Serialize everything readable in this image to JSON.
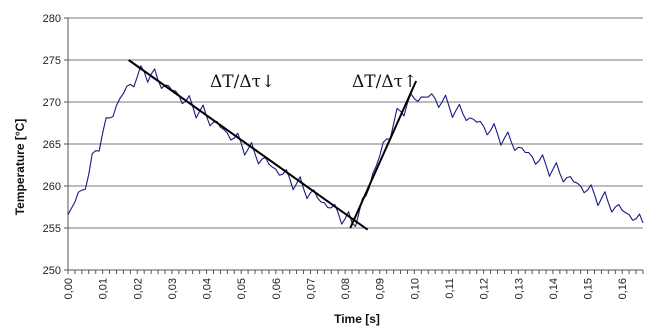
{
  "chart_data": {
    "type": "line",
    "title": "",
    "xlabel": "Time [s]",
    "ylabel": "Temperature  [°C]",
    "xlim": [
      0,
      0.166
    ],
    "ylim": [
      250,
      280
    ],
    "yticks": [
      250,
      255,
      260,
      265,
      270,
      275,
      280
    ],
    "xtick_labels": [
      "0,00",
      "0,01",
      "0,02",
      "0,03",
      "0,04",
      "0,05",
      "0,06",
      "0,07",
      "0,08",
      "0,09",
      "0,10",
      "0,11",
      "0,12",
      "0,13",
      "0,14",
      "0,15",
      "0,16"
    ],
    "grid": "horizontal",
    "legend": "none",
    "series_color": "#1a1a80",
    "series": [
      {
        "x": [
          0.0,
          0.002,
          0.004,
          0.006,
          0.008,
          0.01,
          0.012,
          0.014,
          0.016,
          0.018,
          0.02,
          0.022,
          0.024,
          0.026,
          0.028,
          0.03,
          0.032,
          0.034,
          0.036,
          0.038,
          0.04,
          0.042,
          0.044,
          0.046,
          0.048,
          0.05,
          0.052,
          0.054,
          0.056,
          0.058,
          0.06,
          0.062,
          0.064,
          0.066,
          0.068,
          0.07,
          0.072,
          0.074,
          0.076,
          0.078,
          0.08,
          0.082,
          0.084,
          0.086,
          0.088,
          0.09,
          0.092,
          0.094,
          0.096,
          0.098,
          0.1,
          0.102,
          0.104,
          0.106,
          0.108,
          0.11,
          0.112,
          0.114,
          0.116,
          0.118,
          0.12,
          0.122,
          0.124,
          0.126,
          0.128,
          0.13,
          0.132,
          0.134,
          0.136,
          0.138,
          0.14,
          0.142,
          0.144,
          0.146,
          0.148,
          0.15,
          0.152,
          0.154,
          0.156,
          0.158,
          0.16,
          0.162,
          0.164,
          0.166
        ],
        "y": [
          256.6,
          258.1,
          259.5,
          261.4,
          264.2,
          266.3,
          268.1,
          269.6,
          271.0,
          272.1,
          273.0,
          273.6,
          273.3,
          272.6,
          272.0,
          271.4,
          270.8,
          270.1,
          269.5,
          268.9,
          268.3,
          267.6,
          267.0,
          266.3,
          265.7,
          265.1,
          264.4,
          263.8,
          263.2,
          262.6,
          262.0,
          261.4,
          260.9,
          260.3,
          259.7,
          259.2,
          258.6,
          258.0,
          257.4,
          256.8,
          256.1,
          255.6,
          256.8,
          258.8,
          261.5,
          263.6,
          265.6,
          267.4,
          268.9,
          269.9,
          270.4,
          270.6,
          270.6,
          270.4,
          270.0,
          269.5,
          269.0,
          268.6,
          268.1,
          267.6,
          267.1,
          266.6,
          266.2,
          265.7,
          265.2,
          264.6,
          264.0,
          263.5,
          263.0,
          262.5,
          262.0,
          261.5,
          261.0,
          260.5,
          260.0,
          259.5,
          259.0,
          258.5,
          258.0,
          257.5,
          257.1,
          256.6,
          256.1,
          255.6
        ]
      }
    ],
    "trend_lines": [
      {
        "label": "ΔT/Δτ↓",
        "from": [
          0.0175,
          275.0
        ],
        "to": [
          0.0865,
          254.8
        ]
      },
      {
        "label": "ΔT/Δτ↑",
        "from": [
          0.0815,
          255.0
        ],
        "to": [
          0.1005,
          272.5
        ]
      }
    ]
  }
}
